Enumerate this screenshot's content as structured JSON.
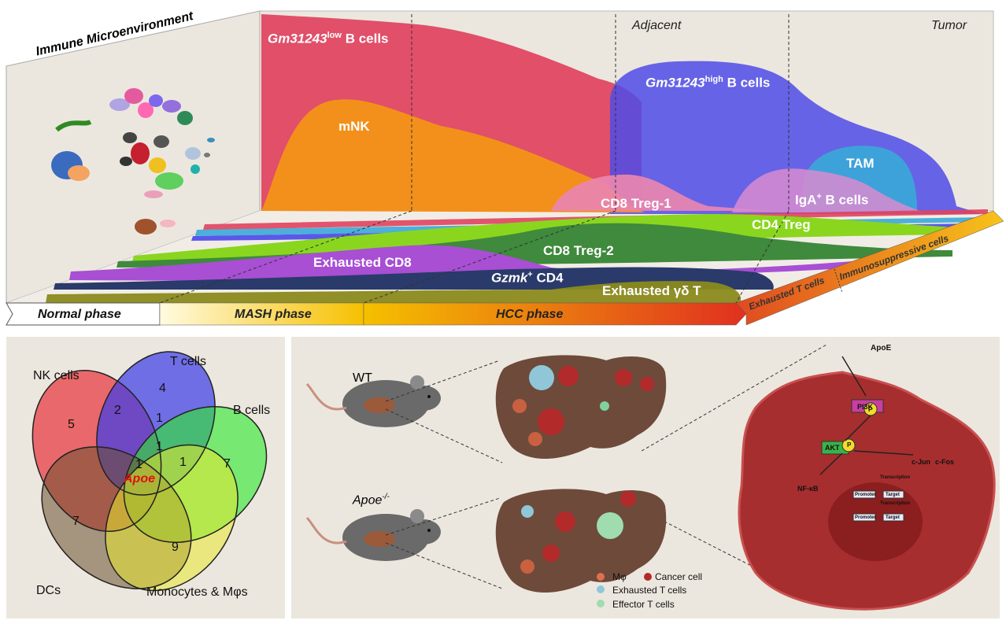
{
  "top": {
    "title": "Immune Microenvironment",
    "region_adjacent": "Adjacent",
    "region_tumor": "Tumor",
    "cells": {
      "gm_low": {
        "gene": "Gm31243",
        "sup": "low",
        "suffix": " B cells"
      },
      "mnk": "mNK",
      "gm_high": {
        "gene": "Gm31243",
        "sup": "high",
        "suffix": " B cells"
      },
      "tam": "TAM",
      "iga": {
        "prefix": "IgA",
        "sup": "+",
        "suffix": " B cells"
      },
      "cd8treg1": "CD8 Treg-1",
      "cd4treg": "CD4 Treg",
      "cd8treg2": "CD8 Treg-2",
      "exhausted_cd8": "Exhausted CD8",
      "gzmk_cd4": {
        "gene": "Gzmk",
        "sup": "+",
        "suffix": " CD4"
      },
      "exhausted_gd": "Exhausted γδ T"
    },
    "phases": {
      "normal": "Normal phase",
      "mash": "MASH phase",
      "hcc": "HCC phase"
    },
    "side_labels": {
      "exhausted_t": "Exhausted T cells",
      "immunosuppressive": "Immunosuppressive cells"
    },
    "colors": {
      "gm_low": "#e0425e",
      "mnk": "#f3901b",
      "gm_high": "#5b57ea",
      "tam": "#3aa8d8",
      "cd8treg1": "#e985b0",
      "cd4treg": "#8ad61e",
      "cd8treg2": "#3f8a3c",
      "exhausted_cd8": "#a84fd4",
      "gzmk_cd4": "#2a3a6a",
      "exhausted_gd": "#8a8a1e"
    }
  },
  "venn": {
    "sets": {
      "nk": "NK cells",
      "t": "T cells",
      "b": "B cells",
      "dc": "DCs",
      "mono": "Monocytes & Mφs"
    },
    "counts": {
      "nk_only": "5",
      "t_only": "4",
      "b_only": "7",
      "dc_only": "7",
      "mono_only": "9",
      "nk_t": "2",
      "t_b_top": "1",
      "t_b_mid": "1",
      "center_1": "1",
      "b_mono": "1"
    },
    "center_gene": "Apoe"
  },
  "mice": {
    "wt": "WT",
    "ko_gene": "Apoe",
    "ko_sup": "-/-"
  },
  "legend": {
    "macrophage": "Mφ",
    "cancer": "Cancer cell",
    "exhausted": "Exhausted T cells",
    "effector": "Effector T cells"
  },
  "pathway": {
    "apoe": "ApoE",
    "pi3k": "PI3K",
    "akt": "AKT",
    "p": "P",
    "nfkb": "NF-κB",
    "cjun": "c-Jun",
    "cfos": "c-Fos",
    "promoter": "Promoter",
    "target": "Target",
    "transcription": "Transcription"
  }
}
